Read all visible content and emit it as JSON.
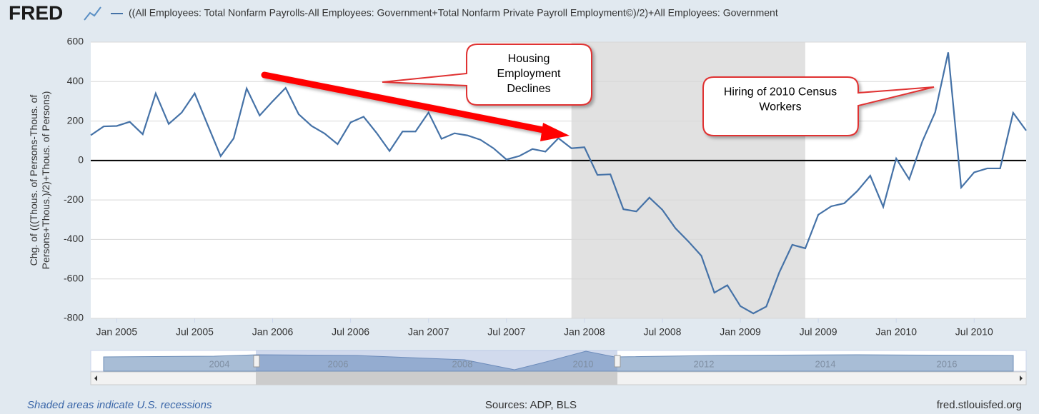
{
  "logo": "FRED",
  "chart_data": {
    "type": "line",
    "y_label_lines": [
      "Chg. of (((Thous. of Persons-Thous. of",
      "Persons+Thous.)/2)+Thous. of Persons)"
    ],
    "x": [
      "2004-11",
      "2004-12",
      "2005-01",
      "2005-02",
      "2005-03",
      "2005-04",
      "2005-05",
      "2005-06",
      "2005-07",
      "2005-08",
      "2005-09",
      "2005-10",
      "2005-11",
      "2005-12",
      "2006-01",
      "2006-02",
      "2006-03",
      "2006-04",
      "2006-05",
      "2006-06",
      "2006-07",
      "2006-08",
      "2006-09",
      "2006-10",
      "2006-11",
      "2006-12",
      "2007-01",
      "2007-02",
      "2007-03",
      "2007-04",
      "2007-05",
      "2007-06",
      "2007-07",
      "2007-08",
      "2007-09",
      "2007-10",
      "2007-11",
      "2007-12",
      "2008-01",
      "2008-02",
      "2008-03",
      "2008-04",
      "2008-05",
      "2008-06",
      "2008-07",
      "2008-08",
      "2008-09",
      "2008-10",
      "2008-11",
      "2008-12",
      "2009-01",
      "2009-02",
      "2009-03",
      "2009-04",
      "2009-05",
      "2009-06",
      "2009-07",
      "2009-08",
      "2009-09",
      "2009-10",
      "2009-11",
      "2009-12",
      "2010-01",
      "2010-02",
      "2010-03",
      "2010-04",
      "2010-05",
      "2010-06",
      "2010-07",
      "2010-08",
      "2010-09",
      "2010-10",
      "2010-11"
    ],
    "series": [
      {
        "name": "((All Employees: Total Nonfarm Payrolls-All Employees: Government+Total Nonfarm Private Payroll Employment©)/2)+All Employees: Government",
        "color": "#4572a7",
        "values": [
          128,
          173,
          175,
          196,
          133,
          340,
          185,
          243,
          340,
          180,
          22,
          112,
          365,
          228,
          300,
          368,
          235,
          175,
          137,
          83,
          193,
          222,
          140,
          48,
          147,
          147,
          243,
          110,
          138,
          127,
          105,
          62,
          5,
          23,
          58,
          45,
          113,
          62,
          67,
          -73,
          -70,
          -247,
          -258,
          -188,
          -250,
          -343,
          -410,
          -483,
          -670,
          -632,
          -738,
          -775,
          -740,
          -567,
          -427,
          -445,
          -275,
          -232,
          -217,
          -155,
          -77,
          -235,
          10,
          -95,
          95,
          245,
          548,
          -137,
          -60,
          -40,
          -40,
          242,
          152
        ]
      }
    ],
    "xlim": [
      "2004-11",
      "2010-11"
    ],
    "xticks": [
      {
        "value": "2005-01",
        "label": "Jan 2005"
      },
      {
        "value": "2005-07",
        "label": "Jul 2005"
      },
      {
        "value": "2006-01",
        "label": "Jan 2006"
      },
      {
        "value": "2006-07",
        "label": "Jul 2006"
      },
      {
        "value": "2007-01",
        "label": "Jan 2007"
      },
      {
        "value": "2007-07",
        "label": "Jul 2007"
      },
      {
        "value": "2008-01",
        "label": "Jan 2008"
      },
      {
        "value": "2008-07",
        "label": "Jul 2008"
      },
      {
        "value": "2009-01",
        "label": "Jan 2009"
      },
      {
        "value": "2009-07",
        "label": "Jul 2009"
      },
      {
        "value": "2010-01",
        "label": "Jan 2010"
      },
      {
        "value": "2010-07",
        "label": "Jul 2010"
      }
    ],
    "ylim": [
      -800,
      600
    ],
    "yticks": [
      -800,
      -600,
      -400,
      -200,
      0,
      200,
      400,
      600
    ],
    "grid": true,
    "zero_line": true,
    "recessions": [
      {
        "start": "2007-12",
        "end": "2009-06"
      }
    ],
    "annotations": [
      [
        "Housing",
        "Employment",
        "Declines"
      ],
      [
        "Hiring of 2010 Census",
        "Workers"
      ]
    ],
    "navigator_labels": [
      "2004",
      "2006",
      "2008",
      "2010",
      "2012",
      "2014",
      "2016"
    ]
  },
  "footer": {
    "note": "Shaded areas indicate U.S. recessions",
    "sources": "Sources: ADP, BLS",
    "site": "fred.stlouisfed.org"
  }
}
